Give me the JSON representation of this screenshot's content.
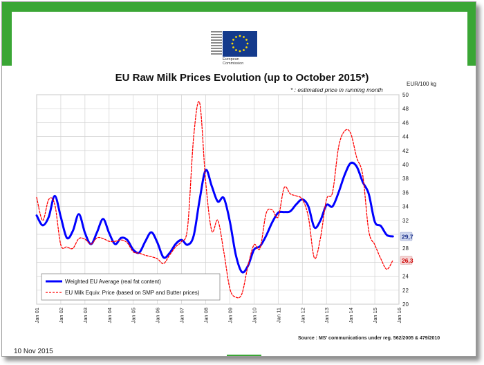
{
  "header": {
    "logo_alt": "European Commission logo",
    "logo_line1": "European",
    "logo_line2": "Commission",
    "footer_date": "10 Nov 2015"
  },
  "colors": {
    "brand_green": "#3aa635",
    "series_blue": "#0000ff",
    "series_red": "#ff0000"
  },
  "chart_data": {
    "type": "line",
    "title": "EU Raw Milk Prices Evolution (up to  October 2015*)",
    "subtitle": "* : estimated price in running month",
    "ylabel": "EUR/100 kg",
    "ylim": [
      20,
      50
    ],
    "yticks": [
      20,
      22,
      24,
      26,
      28,
      30,
      32,
      34,
      36,
      38,
      40,
      42,
      44,
      46,
      48,
      50
    ],
    "xlim": [
      2001.0,
      2016.0
    ],
    "xticks": [
      "Jan 01",
      "Jan 02",
      "Jan 03",
      "Jan 04",
      "Jan 05",
      "Jan 06",
      "Jan 07",
      "Jan 08",
      "Jan 09",
      "Jan 10",
      "Jan 11",
      "Jan 12",
      "Jan 13",
      "Jan 14",
      "Jan 15",
      "Jan 16"
    ],
    "grid": true,
    "legend_position": "bottom-left",
    "source": "Source : MS' communications under reg. 562/2005 & 479/2010",
    "series": [
      {
        "name": "Weighted EU Average (real fat content)",
        "style": "solid",
        "end_label": "29,7",
        "x": [
          2001.0,
          2001.25,
          2001.5,
          2001.75,
          2002.0,
          2002.25,
          2002.5,
          2002.75,
          2003.0,
          2003.25,
          2003.5,
          2003.75,
          2004.0,
          2004.25,
          2004.5,
          2004.75,
          2005.0,
          2005.25,
          2005.5,
          2005.75,
          2006.0,
          2006.25,
          2006.5,
          2006.75,
          2007.0,
          2007.25,
          2007.5,
          2007.75,
          2008.0,
          2008.25,
          2008.5,
          2008.75,
          2009.0,
          2009.25,
          2009.5,
          2009.75,
          2010.0,
          2010.25,
          2010.5,
          2010.75,
          2011.0,
          2011.25,
          2011.5,
          2011.75,
          2012.0,
          2012.25,
          2012.5,
          2012.75,
          2013.0,
          2013.25,
          2013.5,
          2013.75,
          2014.0,
          2014.25,
          2014.5,
          2014.75,
          2015.0,
          2015.25,
          2015.5,
          2015.75
        ],
        "values": [
          32.7,
          31.3,
          32.5,
          35.5,
          32.5,
          29.5,
          30.5,
          32.9,
          30.2,
          28.6,
          30.3,
          32.2,
          30.2,
          28.6,
          29.5,
          29.2,
          27.8,
          27.4,
          29.0,
          30.3,
          28.8,
          26.7,
          27.3,
          28.6,
          29.2,
          28.5,
          29.8,
          35.0,
          39.2,
          36.9,
          34.7,
          35.2,
          31.8,
          27.0,
          24.6,
          25.5,
          27.8,
          28.3,
          29.8,
          31.7,
          33.1,
          33.2,
          33.3,
          34.3,
          35.0,
          34.0,
          31.0,
          32.0,
          34.2,
          34.0,
          36.0,
          38.5,
          40.2,
          39.7,
          37.5,
          35.8,
          31.8,
          31.2,
          29.9,
          29.7
        ]
      },
      {
        "name": "EU Milk Equiv. Price (based on SMP and Butter prices)",
        "style": "dashed",
        "end_label": "26,3",
        "x": [
          2001.0,
          2001.25,
          2001.5,
          2001.75,
          2002.0,
          2002.25,
          2002.5,
          2002.75,
          2003.0,
          2003.25,
          2003.5,
          2003.75,
          2004.0,
          2004.25,
          2004.5,
          2004.75,
          2005.0,
          2005.25,
          2005.5,
          2005.75,
          2006.0,
          2006.25,
          2006.5,
          2006.75,
          2007.0,
          2007.25,
          2007.5,
          2007.75,
          2008.0,
          2008.25,
          2008.5,
          2008.75,
          2009.0,
          2009.25,
          2009.5,
          2009.75,
          2010.0,
          2010.25,
          2010.5,
          2010.75,
          2011.0,
          2011.25,
          2011.5,
          2011.75,
          2012.0,
          2012.25,
          2012.5,
          2012.75,
          2013.0,
          2013.25,
          2013.5,
          2013.75,
          2014.0,
          2014.25,
          2014.5,
          2014.75,
          2015.0,
          2015.25,
          2015.5,
          2015.75
        ],
        "values": [
          35.3,
          32.0,
          35.0,
          34.3,
          28.5,
          28.2,
          28.0,
          29.4,
          29.3,
          28.6,
          29.5,
          29.4,
          29.0,
          29.0,
          29.2,
          28.8,
          27.5,
          27.3,
          27.0,
          26.8,
          26.5,
          25.8,
          27.0,
          28.2,
          29.0,
          31.0,
          44.0,
          48.8,
          37.5,
          30.5,
          32.0,
          27.5,
          22.2,
          21.0,
          21.5,
          25.5,
          28.5,
          28.0,
          33.0,
          33.5,
          32.5,
          36.7,
          35.8,
          35.5,
          35.0,
          32.5,
          26.6,
          29.5,
          35.0,
          36.0,
          42.5,
          44.8,
          44.5,
          41.0,
          38.5,
          30.5,
          28.5,
          26.5,
          25.0,
          26.3
        ]
      }
    ]
  }
}
